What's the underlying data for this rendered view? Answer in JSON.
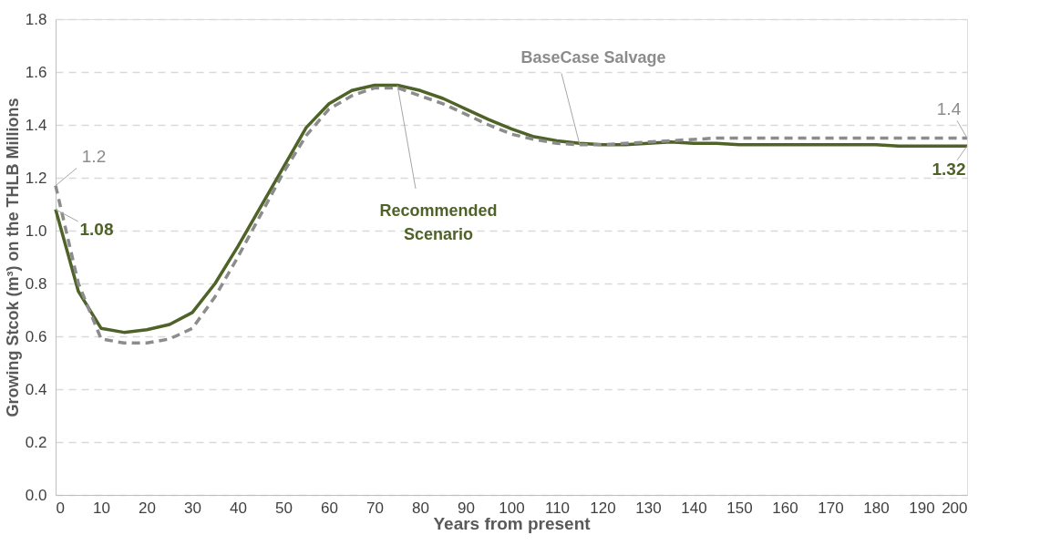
{
  "chart_data": {
    "type": "line",
    "xlabel": "Years from present",
    "ylabel": "Growing Stcok (m³) on the THLB  Millions",
    "x": [
      0,
      5,
      10,
      15,
      20,
      25,
      30,
      35,
      40,
      45,
      50,
      55,
      60,
      65,
      70,
      75,
      80,
      85,
      90,
      95,
      100,
      105,
      110,
      115,
      120,
      125,
      130,
      135,
      140,
      145,
      150,
      155,
      160,
      165,
      170,
      175,
      180,
      185,
      190,
      195,
      200
    ],
    "series": [
      {
        "name": "Recommended Scenario",
        "color": "#4f6228",
        "line_style": "solid",
        "values": [
          1.08,
          0.77,
          0.63,
          0.615,
          0.625,
          0.645,
          0.69,
          0.8,
          0.94,
          1.09,
          1.24,
          1.39,
          1.48,
          1.53,
          1.55,
          1.55,
          1.53,
          1.5,
          1.46,
          1.42,
          1.385,
          1.355,
          1.34,
          1.33,
          1.325,
          1.325,
          1.33,
          1.335,
          1.33,
          1.33,
          1.325,
          1.325,
          1.325,
          1.325,
          1.325,
          1.325,
          1.325,
          1.32,
          1.32,
          1.32,
          1.32
        ],
        "value_labels": [
          "1.08",
          null,
          null,
          null,
          null,
          null,
          null,
          null,
          null,
          null,
          null,
          null,
          null,
          null,
          null,
          null,
          null,
          null,
          null,
          null,
          null,
          null,
          null,
          null,
          null,
          null,
          null,
          null,
          null,
          null,
          null,
          null,
          null,
          null,
          null,
          null,
          null,
          null,
          null,
          null,
          "1.32"
        ]
      },
      {
        "name": "BaseCase Salvage",
        "color": "#8c8c8c",
        "line_style": "dashed",
        "values": [
          1.17,
          0.8,
          0.59,
          0.575,
          0.575,
          0.59,
          0.63,
          0.75,
          0.9,
          1.06,
          1.22,
          1.36,
          1.46,
          1.51,
          1.54,
          1.54,
          1.51,
          1.48,
          1.44,
          1.4,
          1.365,
          1.345,
          1.33,
          1.325,
          1.325,
          1.33,
          1.335,
          1.34,
          1.345,
          1.35,
          1.35,
          1.35,
          1.35,
          1.35,
          1.35,
          1.35,
          1.35,
          1.35,
          1.35,
          1.35,
          1.35
        ],
        "value_labels": [
          "1.2",
          null,
          null,
          null,
          null,
          null,
          null,
          null,
          null,
          null,
          null,
          null,
          null,
          null,
          null,
          null,
          null,
          null,
          null,
          null,
          null,
          null,
          null,
          null,
          null,
          null,
          null,
          null,
          null,
          null,
          null,
          null,
          null,
          null,
          null,
          null,
          null,
          null,
          null,
          null,
          "1.4"
        ]
      }
    ],
    "xlim": [
      0,
      200
    ],
    "xticks": [
      0,
      10,
      20,
      30,
      40,
      50,
      60,
      70,
      80,
      90,
      100,
      110,
      120,
      130,
      140,
      150,
      160,
      170,
      180,
      190,
      200
    ],
    "ylim": [
      0,
      1.8
    ],
    "yticks": [
      {
        "value": 0,
        "label": "0.0"
      },
      0.2,
      0.4,
      0.6,
      0.8,
      {
        "value": 1,
        "label": "1.0"
      },
      1.2,
      1.4,
      1.6,
      1.8
    ],
    "grid": "y"
  }
}
